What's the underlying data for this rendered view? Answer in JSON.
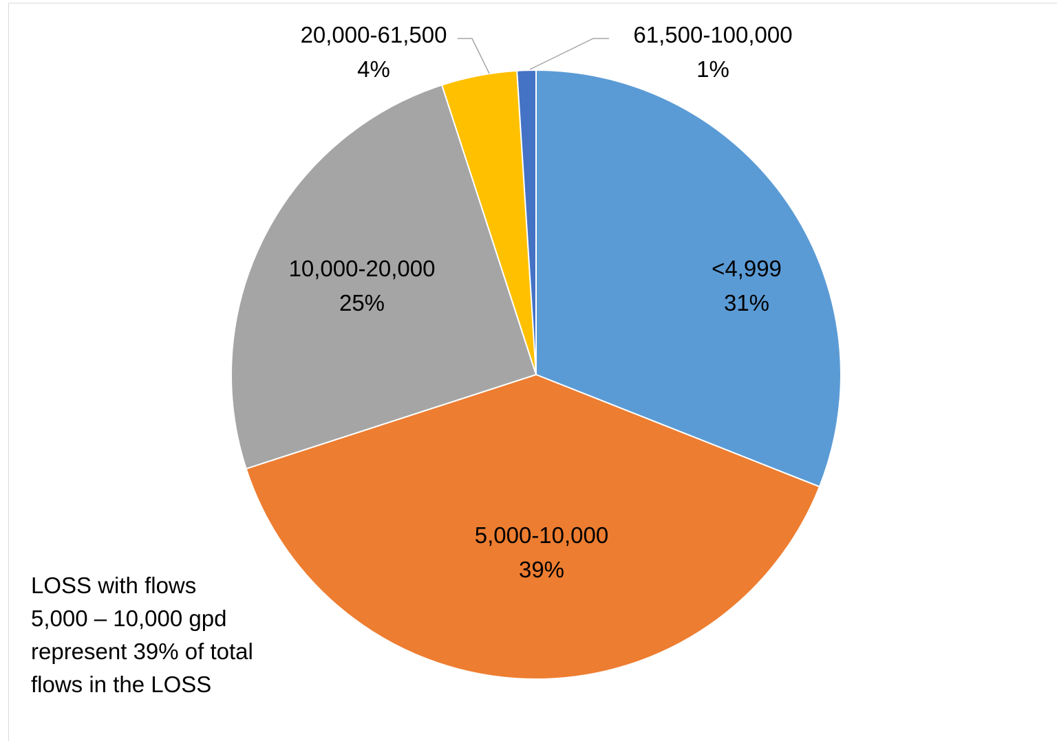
{
  "chart_data": {
    "type": "pie",
    "title": "",
    "start_angle_deg": 0,
    "direction": "clockwise",
    "slices": [
      {
        "category": "<4,999",
        "percent_label": "31%",
        "value": 31,
        "color": "#5B9BD5"
      },
      {
        "category": "5,000-10,000",
        "percent_label": "39%",
        "value": 39,
        "color": "#ED7D31"
      },
      {
        "category": "10,000-20,000",
        "percent_label": "25%",
        "value": 25,
        "color": "#A5A5A5"
      },
      {
        "category": "20,000-61,500",
        "percent_label": "4%",
        "value": 4,
        "color": "#FFC000"
      },
      {
        "category": "61,500-100,000",
        "percent_label": "1%",
        "value": 1,
        "color": "#4472C4"
      }
    ]
  },
  "annotation": {
    "lines": [
      "LOSS with flows",
      "5,000 – 10,000 gpd",
      "represent 39% of total",
      "flows in the LOSS"
    ]
  }
}
